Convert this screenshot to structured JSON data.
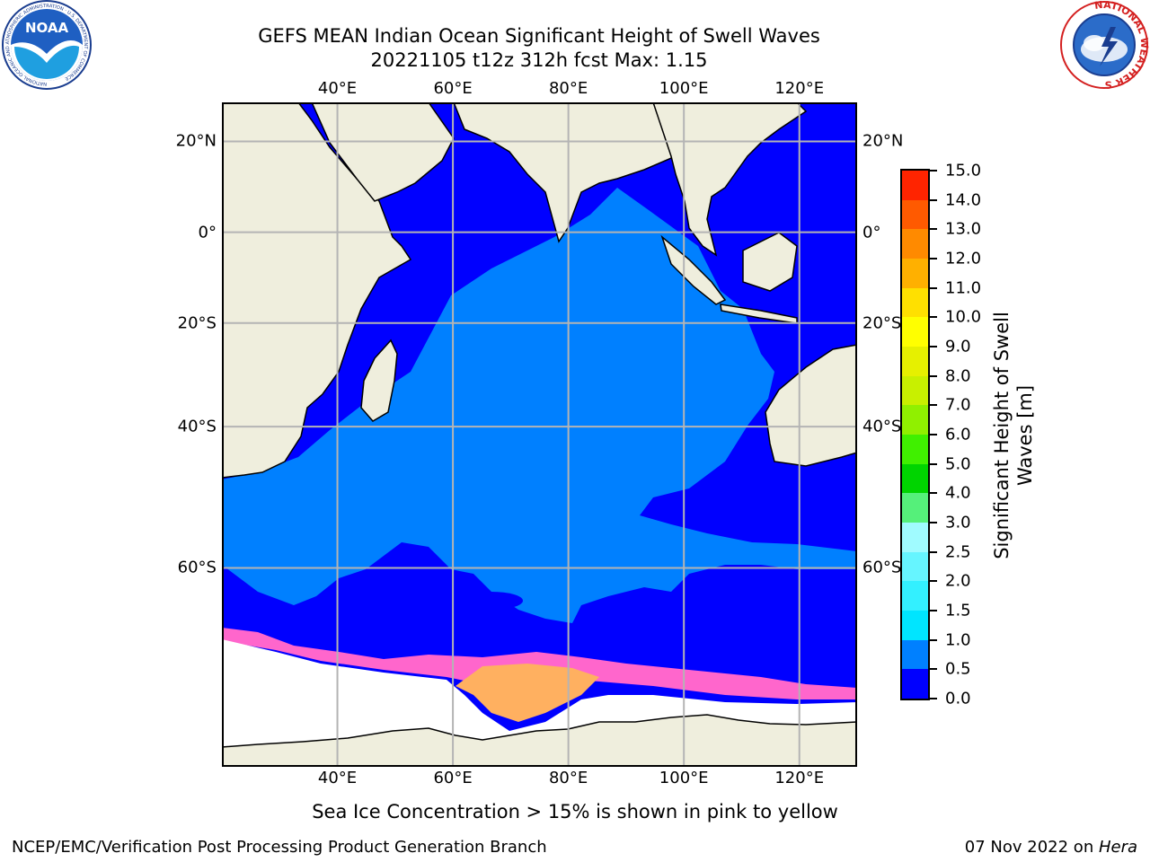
{
  "title": {
    "line1": "GEFS MEAN Indian Ocean Significant Height of Swell Waves",
    "line2": "20221105 t12z 312h fcst   Max: 1.15"
  },
  "map": {
    "lon_ticks": [
      "40°E",
      "60°E",
      "80°E",
      "100°E",
      "120°E"
    ],
    "lat_ticks": [
      "20°N",
      "0°",
      "20°S",
      "40°S",
      "60°S"
    ],
    "lon_values": [
      40,
      60,
      80,
      100,
      120
    ],
    "lat_values": [
      20,
      0,
      -20,
      -40,
      -60
    ],
    "extent": {
      "lon_min": 20,
      "lon_max": 130,
      "lat_min": -76,
      "lat_max": 28
    },
    "colors": {
      "land": "#efeedd",
      "ocean_low": "#0000ff",
      "ocean_mid": "#0080ff",
      "ice": "#ffffff",
      "grid": "#b4b4b4"
    }
  },
  "colorbar": {
    "title": "Significant Height of Swell Waves [m]",
    "title_lines": [
      "Significant Height of Swell",
      "Waves [m]"
    ],
    "labels": [
      "0.0",
      "0.5",
      "1.0",
      "1.5",
      "2.0",
      "2.5",
      "3.0",
      "4.0",
      "5.0",
      "6.0",
      "7.0",
      "8.0",
      "9.0",
      "10.0",
      "11.0",
      "12.0",
      "13.0",
      "14.0",
      "15.0"
    ],
    "colors": [
      "#0000ff",
      "#0080ff",
      "#00e5ff",
      "#33f0ff",
      "#66f5ff",
      "#a0fbff",
      "#55f07a",
      "#00d400",
      "#40f000",
      "#90f000",
      "#c8f000",
      "#e6f000",
      "#ffff00",
      "#ffe000",
      "#ffb000",
      "#ff8a00",
      "#ff5a00",
      "#ff2400",
      "#ff0000"
    ]
  },
  "note": "Sea Ice Concentration > 15% is shown in pink to yellow",
  "footer": {
    "left": "NCEP/EMC/Verification Post Processing Product Generation Branch",
    "right_date": "07 Nov 2022 on ",
    "right_host": "Hera"
  },
  "logos": {
    "noaa": "NOAA",
    "noaa_ring": "NATIONAL OCEANIC AND ATMOSPHERIC ADMINISTRATION · U.S. DEPARTMENT OF COMMERCE",
    "nws_ring": "NATIONAL WEATHER SERVICE"
  }
}
